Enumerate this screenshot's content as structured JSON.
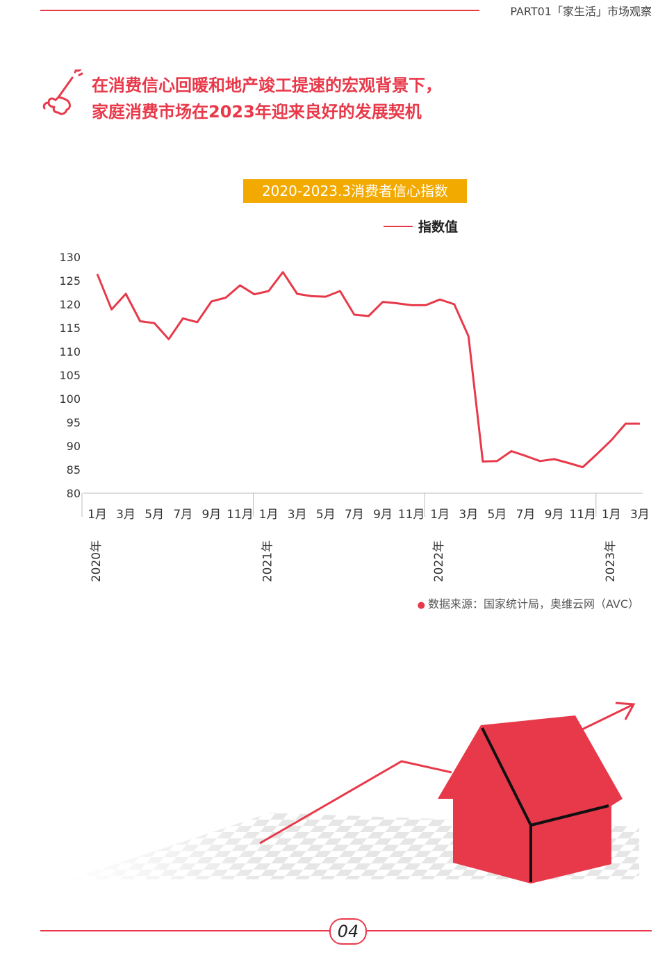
{
  "header": {
    "section_label": "PART01「家生活」市场观察"
  },
  "headline": {
    "line1": "在消费信心回暖和地产竣工提速的宏观背景下，",
    "line2": "家庭消费市场在2023年迎来良好的发展契机"
  },
  "chart_data": {
    "type": "line",
    "title": "2020-2023.3消费者信心指数",
    "legend_position": "top-right",
    "grid": false,
    "ylim": [
      80,
      130
    ],
    "yticks": [
      130,
      125,
      120,
      115,
      110,
      105,
      100,
      95,
      90,
      85,
      80
    ],
    "x": [
      "2020-01",
      "2020-02",
      "2020-03",
      "2020-04",
      "2020-05",
      "2020-06",
      "2020-07",
      "2020-08",
      "2020-09",
      "2020-10",
      "2020-11",
      "2020-12",
      "2021-01",
      "2021-02",
      "2021-03",
      "2021-04",
      "2021-05",
      "2021-06",
      "2021-07",
      "2021-08",
      "2021-09",
      "2021-10",
      "2021-11",
      "2021-12",
      "2022-01",
      "2022-02",
      "2022-03",
      "2022-04",
      "2022-05",
      "2022-06",
      "2022-07",
      "2022-08",
      "2022-09",
      "2022-10",
      "2022-11",
      "2022-12",
      "2023-01",
      "2023-02",
      "2023-03"
    ],
    "tick_labels": [
      "1月",
      "3月",
      "5月",
      "7月",
      "9月",
      "11月",
      "1月",
      "3月",
      "5月",
      "7月",
      "9月",
      "11月",
      "1月",
      "3月",
      "5月",
      "7月",
      "9月",
      "11月",
      "1月",
      "3月"
    ],
    "year_labels": [
      "2020年",
      "2021年",
      "2022年",
      "2023年"
    ],
    "series": [
      {
        "name": "指数值",
        "color": "#e8394a",
        "values": [
          126.4,
          118.9,
          122.2,
          116.4,
          116.0,
          112.6,
          117.0,
          116.2,
          120.6,
          121.4,
          124.0,
          122.1,
          122.8,
          126.8,
          122.2,
          121.7,
          121.6,
          122.8,
          117.8,
          117.5,
          120.5,
          120.2,
          119.8,
          119.8,
          121.0,
          120.0,
          113.2,
          86.7,
          86.8,
          88.9,
          87.9,
          86.8,
          87.2,
          86.4,
          85.5,
          88.3,
          91.2,
          94.7,
          94.7
        ]
      }
    ]
  },
  "source_text": "数据来源：国家统计局，奥维云网（AVC）",
  "page_number": "04"
}
